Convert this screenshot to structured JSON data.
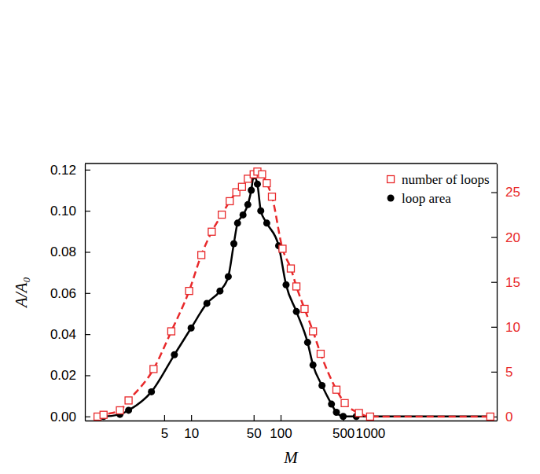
{
  "chart_data": {
    "type": "line",
    "x_label": "M",
    "y_label": "A/A₀",
    "log": "x",
    "xlim": [
      0.65,
      26000
    ],
    "xticks": [
      5,
      10,
      50,
      100,
      500,
      1000
    ],
    "ylim": [
      -0.002,
      0.123
    ],
    "yticks": [
      {
        "value": 0,
        "label": "0.00"
      },
      0.02,
      0.04,
      0.06,
      0.08,
      {
        "value": 0.1,
        "label": "0.10"
      },
      0.12
    ],
    "y2lim": [
      -0.44,
      28.2
    ],
    "y2ticks": [
      0,
      5,
      10,
      15,
      20,
      25
    ],
    "legend": "upper right",
    "series": [
      {
        "name": "number of loops",
        "color": "#e8292b",
        "axis": "y2",
        "marker": "square",
        "line_style": "dashed",
        "x": [
          0.9,
          1.05,
          1.6,
          2.0,
          3.8,
          6,
          9.5,
          13,
          17,
          22,
          27,
          32,
          37,
          43,
          50,
          55,
          62,
          70,
          80,
          105,
          130,
          150,
          185,
          230,
          280,
          420,
          520,
          750,
          1000,
          22000
        ],
        "values": [
          0,
          0.2,
          0.7,
          1.8,
          5.3,
          9.5,
          14,
          18,
          20.6,
          22.5,
          24,
          25,
          25.6,
          26.5,
          27,
          27.3,
          27,
          26,
          24.5,
          18.7,
          16.5,
          14.5,
          12,
          9.5,
          7,
          3,
          1.5,
          0.4,
          0,
          0
        ]
      },
      {
        "name": "loop area",
        "color": "#000000",
        "marker": "circle",
        "line_style": "solid",
        "x": [
          0.9,
          1.05,
          1.6,
          2.0,
          3.6,
          6.5,
          10,
          15,
          21,
          26,
          30,
          33,
          38,
          43,
          47,
          50,
          55,
          60,
          70,
          95,
          115,
          150,
          200,
          230,
          290,
          370,
          420,
          500,
          700,
          22000
        ],
        "values": [
          0,
          0,
          0.001,
          0.003,
          0.012,
          0.03,
          0.043,
          0.055,
          0.061,
          0.068,
          0.084,
          0.094,
          0.098,
          0.103,
          0.11,
          0.117,
          0.113,
          0.1,
          0.094,
          0.083,
          0.064,
          0.051,
          0.036,
          0.025,
          0.015,
          0.006,
          0.002,
          0,
          0,
          0
        ]
      }
    ]
  }
}
